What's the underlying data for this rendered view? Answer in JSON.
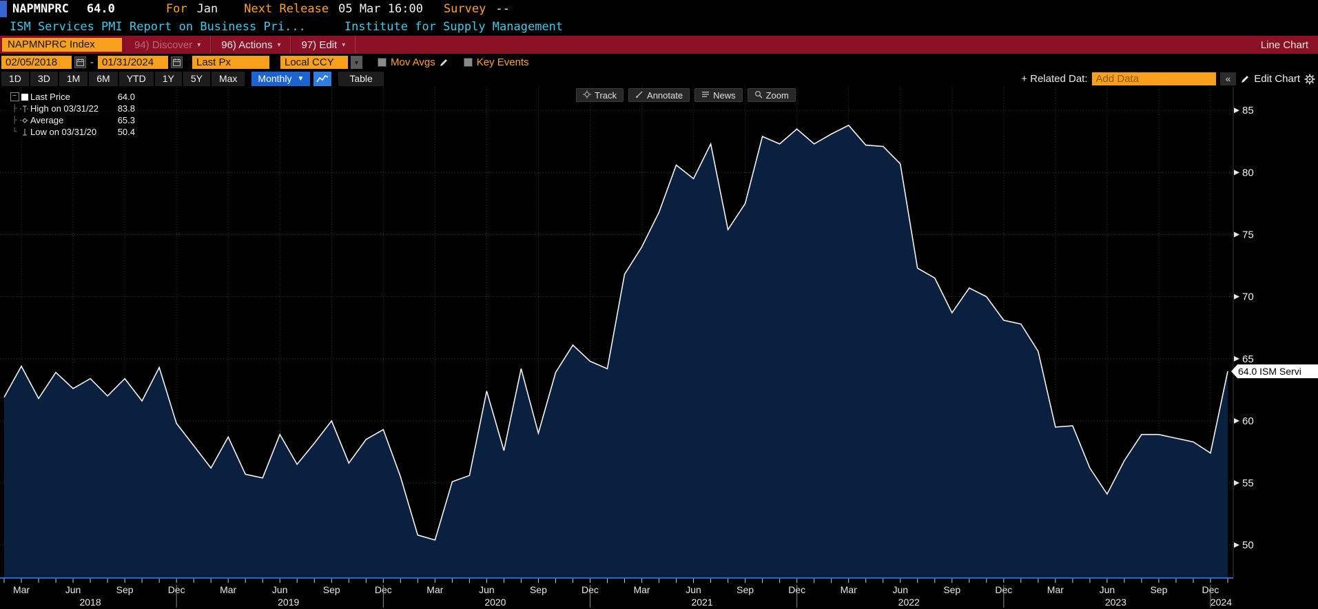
{
  "header": {
    "ticker": "NAPMNPRC",
    "last_value": "64.0",
    "for_label": "For",
    "for_value": "Jan",
    "next_release_label": "Next Release",
    "next_release_value": "05 Mar 16:00",
    "survey_label": "Survey",
    "survey_value": "--",
    "description": "ISM Services PMI Report on Business Pri...",
    "source": "Institute for Supply Management"
  },
  "toolbar": {
    "security_field": "NAPMNPRC Index",
    "discover_label": "94) Discover",
    "actions_label": "96) Actions",
    "edit_label": "97) Edit",
    "dropdown_glyph": "▾",
    "view_title": "Line Chart"
  },
  "settings": {
    "start_date": "02/05/2018",
    "end_date": "01/31/2024",
    "date_separator": "-",
    "price_field": "Last Px",
    "currency": "Local CCY",
    "currency_arrow": "▼",
    "mov_avgs_label": "Mov Avgs",
    "key_events_label": "Key Events"
  },
  "periods": [
    "1D",
    "3D",
    "1M",
    "6M",
    "YTD",
    "1Y",
    "5Y",
    "Max"
  ],
  "frequency": "Monthly",
  "frequency_arrow": "▼",
  "table_label": "Table",
  "right_tools": {
    "related_label": "+ Related Dat:",
    "add_data_placeholder": "Add Data",
    "collapse_glyph": "«",
    "edit_chart_label": "Edit Chart"
  },
  "chart_tools": [
    "Track",
    "Annotate",
    "News",
    "Zoom"
  ],
  "legend": {
    "collapse_glyph": "−",
    "items": [
      {
        "marker": "square",
        "label": "Last Price",
        "value": "64.0"
      },
      {
        "marker": "high",
        "label": "High on 03/31/22",
        "value": "83.8"
      },
      {
        "marker": "average",
        "label": "Average",
        "value": "65.3"
      },
      {
        "marker": "low",
        "label": "Low on 03/31/20",
        "value": "50.4"
      }
    ]
  },
  "price_tag": "64.0 ISM Servi",
  "colors": {
    "accent_orange": "#f8a01c",
    "header_orange": "#ffa028",
    "cyan": "#41c8e8",
    "toolbar_red": "#8c1127",
    "frequency_blue": "#1b63d1",
    "area_fill": "#0b1f3e",
    "line": "#f5f5f5",
    "axis_blue": "#2f66d4"
  },
  "chart_data": {
    "type": "area",
    "series_name": "NAPMNPRC Index (Last Px)",
    "frequency": "monthly",
    "start": "Feb 2018",
    "end": "Jan 2024",
    "values": [
      61.9,
      64.4,
      61.8,
      63.9,
      62.6,
      63.4,
      62.0,
      63.4,
      61.6,
      64.3,
      59.8,
      58.0,
      56.2,
      58.7,
      55.7,
      55.4,
      58.9,
      56.5,
      58.2,
      60.0,
      56.6,
      58.5,
      59.3,
      55.5,
      50.8,
      50.4,
      55.1,
      55.6,
      62.4,
      57.6,
      64.2,
      59.0,
      63.9,
      66.1,
      64.8,
      64.2,
      71.8,
      74.0,
      76.8,
      80.6,
      79.5,
      82.3,
      75.4,
      77.5,
      82.9,
      82.3,
      83.5,
      82.3,
      83.1,
      83.8,
      82.2,
      82.1,
      80.7,
      72.3,
      71.5,
      68.7,
      70.7,
      70.0,
      68.1,
      67.8,
      65.6,
      59.5,
      59.6,
      56.2,
      54.1,
      56.8,
      58.9,
      58.9,
      58.6,
      58.3,
      57.4,
      64.0
    ],
    "last_price": 64.0,
    "high": {
      "date": "03/31/22",
      "value": 83.8
    },
    "low": {
      "date": "03/31/20",
      "value": 50.4
    },
    "average": 65.3,
    "ylim": [
      47.4,
      86.9
    ],
    "y_ticks": [
      50,
      55,
      60,
      65,
      70,
      75,
      80,
      85
    ],
    "x_quarter_labels": [
      "Mar",
      "Jun",
      "Sep",
      "Dec"
    ],
    "x_year_ticks": [
      {
        "label": "2018",
        "index": 5
      },
      {
        "label": "2019",
        "index": 16.5
      },
      {
        "label": "2020",
        "index": 28.5
      },
      {
        "label": "2021",
        "index": 40.5
      },
      {
        "label": "2022",
        "index": 52.5
      },
      {
        "label": "2023",
        "index": 64.5
      },
      {
        "label": "2024",
        "index": 71,
        "anchor": "end"
      }
    ],
    "grid": "dotted, horizontal every 5 pts, vertical quarterly",
    "legend_position": "top-left"
  }
}
